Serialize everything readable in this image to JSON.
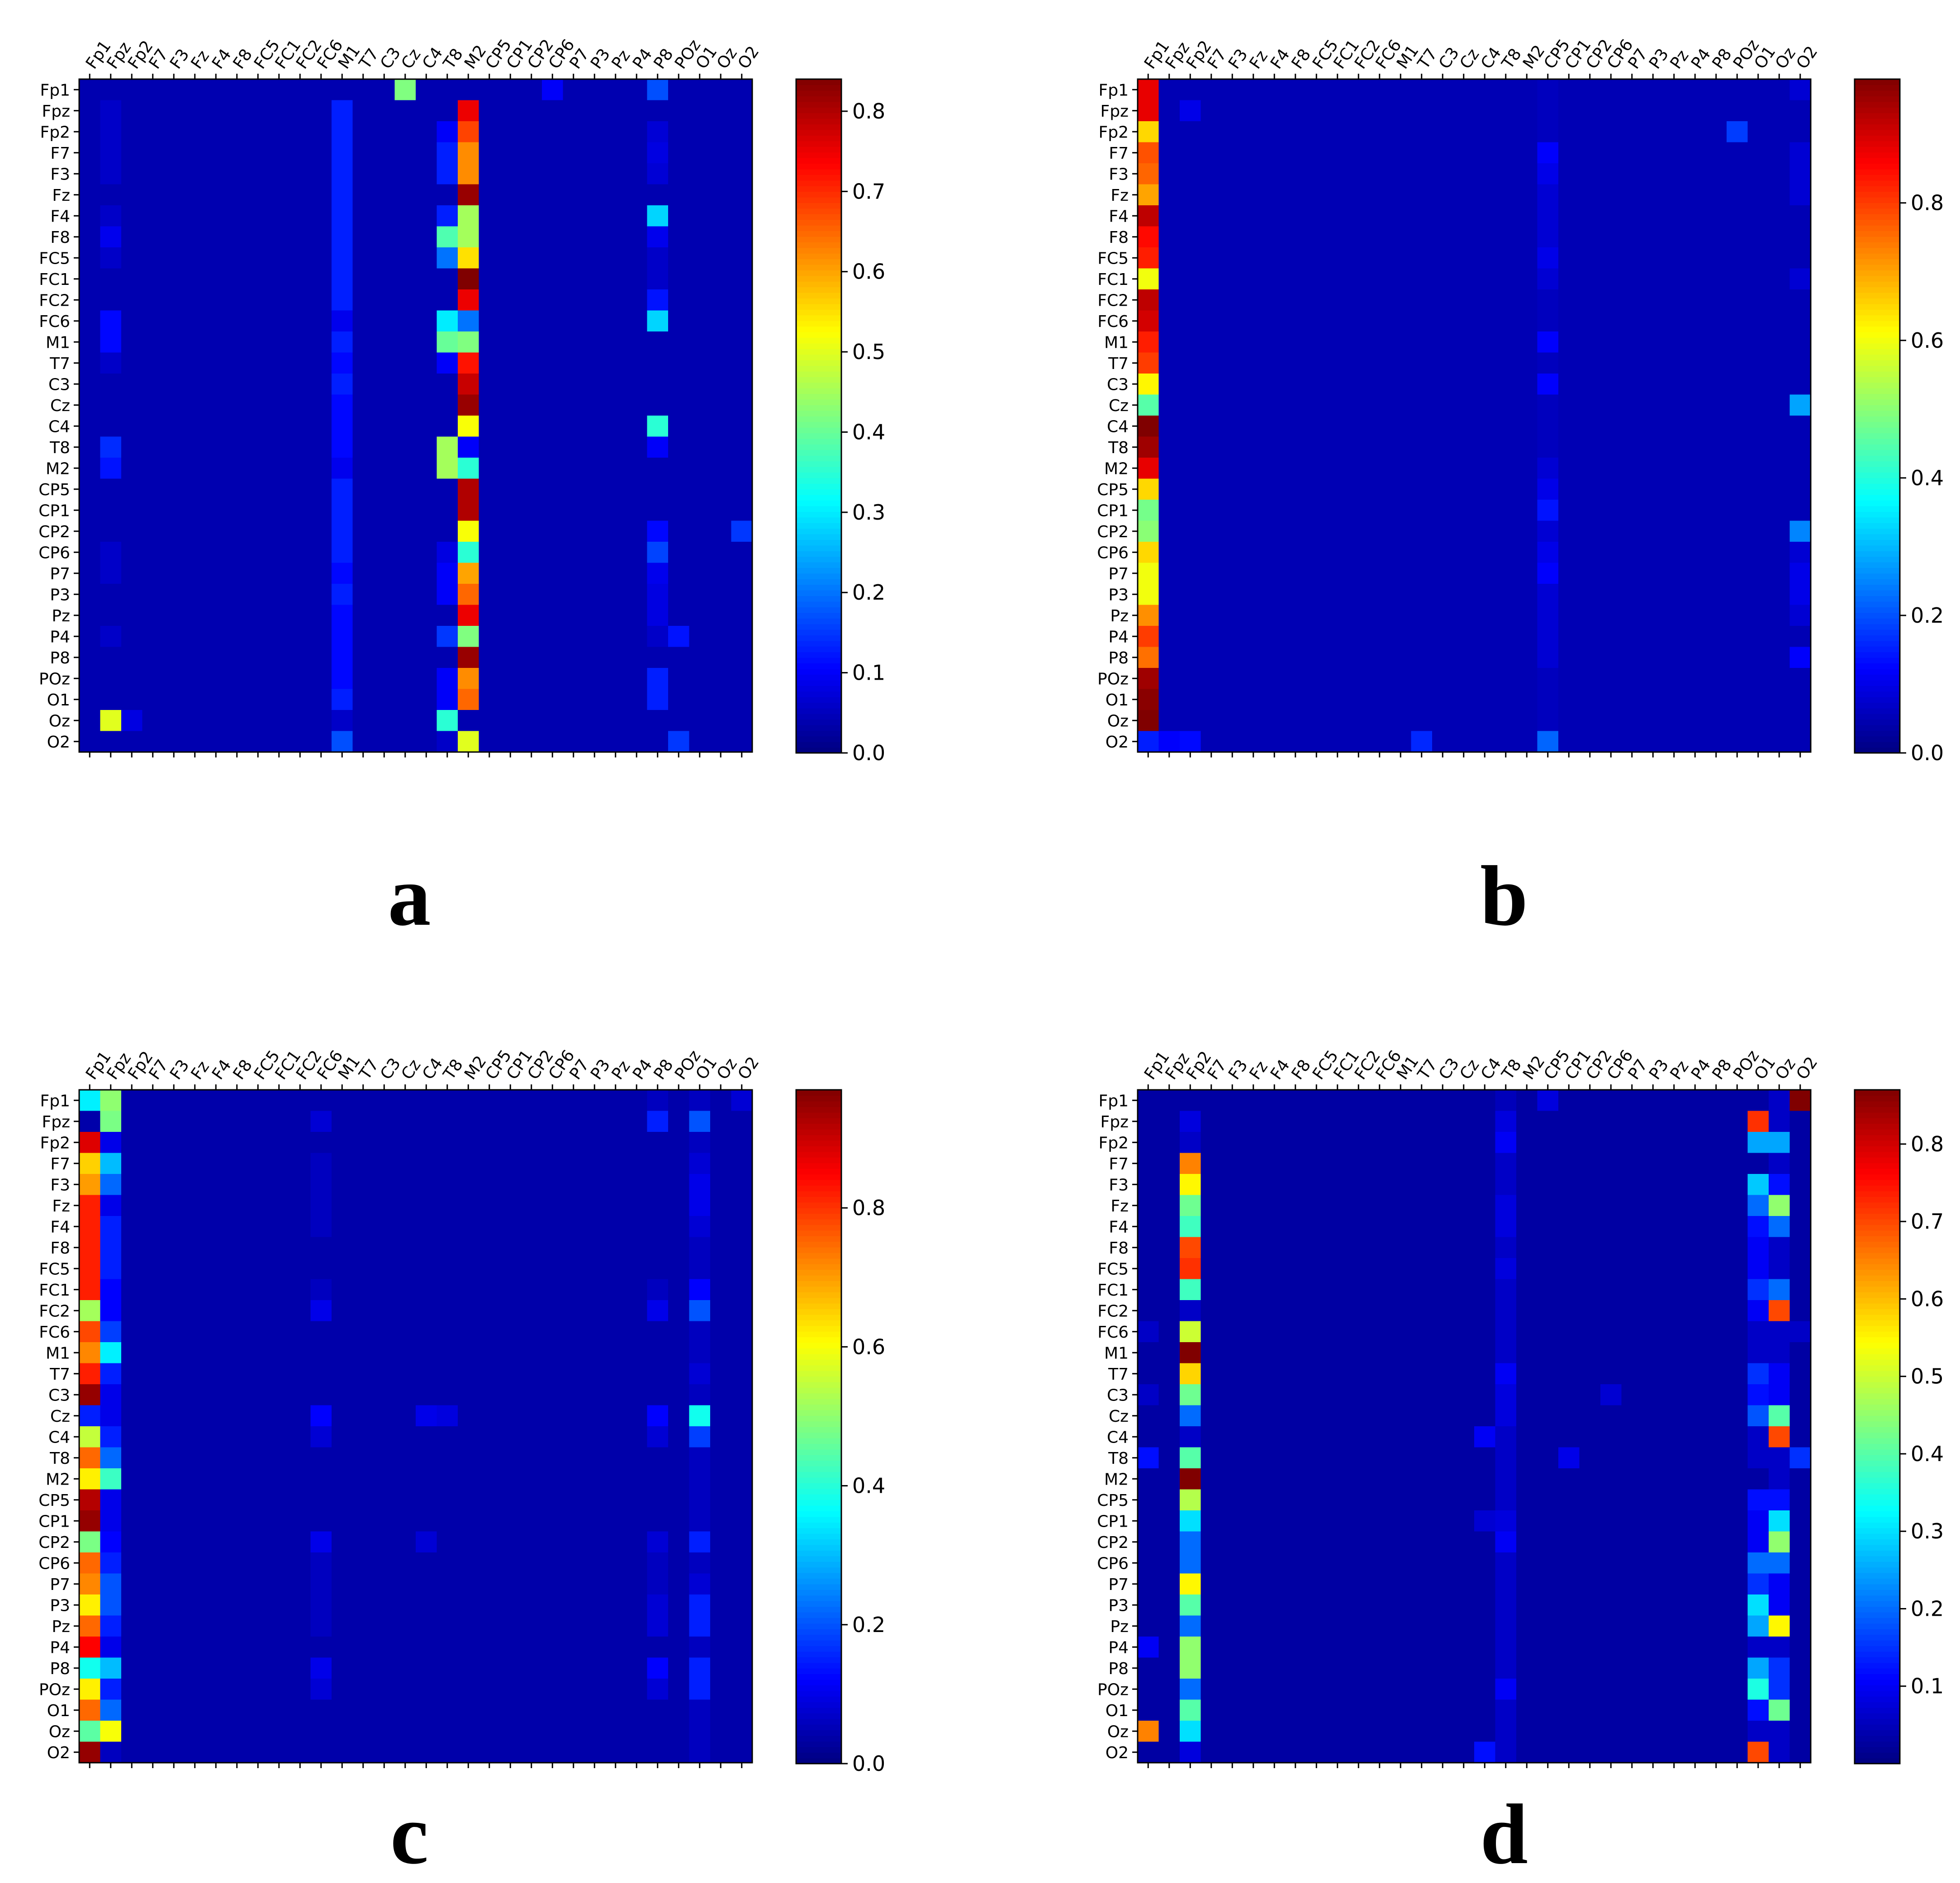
{
  "figure": {
    "panels": [
      "a",
      "b",
      "c",
      "d"
    ]
  },
  "chart_data": [
    {
      "type": "heatmap",
      "panel_label": "a",
      "channels": [
        "Fp1",
        "Fpz",
        "Fp2",
        "F7",
        "F3",
        "Fz",
        "F4",
        "F8",
        "FC5",
        "FC1",
        "FC2",
        "FC6",
        "M1",
        "T7",
        "C3",
        "Cz",
        "C4",
        "T8",
        "M2",
        "CP5",
        "CP1",
        "CP2",
        "CP6",
        "P7",
        "P3",
        "Pz",
        "P4",
        "P8",
        "POz",
        "O1",
        "Oz",
        "O2"
      ],
      "xlabel": "",
      "ylabel": "",
      "colormap": "jet",
      "colorbar": {
        "vmin": 0.0,
        "vmax": 0.84,
        "ticks": [
          0.0,
          0.1,
          0.2,
          0.3,
          0.4,
          0.5,
          0.6,
          0.7,
          0.8
        ],
        "tick_labels": [
          "0.0",
          "0.1",
          "0.2",
          "0.3",
          "0.4",
          "0.5",
          "0.6",
          "0.7",
          "0.8"
        ]
      },
      "background_value": 0.04,
      "column_profiles": [
        {
          "col": "M1",
          "values": [
            0.04,
            0.13,
            0.13,
            0.13,
            0.13,
            0.13,
            0.13,
            0.13,
            0.13,
            0.13,
            0.13,
            0.09,
            0.13,
            0.11,
            0.13,
            0.11,
            0.11,
            0.11,
            0.09,
            0.13,
            0.13,
            0.13,
            0.13,
            0.11,
            0.13,
            0.11,
            0.11,
            0.11,
            0.11,
            0.13,
            0.06,
            0.17
          ]
        },
        {
          "col": "T8",
          "values": [
            0.04,
            0.04,
            0.1,
            0.13,
            0.13,
            0.04,
            0.13,
            0.38,
            0.2,
            0.04,
            0.04,
            0.3,
            0.4,
            0.1,
            0.04,
            0.04,
            0.04,
            0.45,
            0.45,
            0.04,
            0.04,
            0.04,
            0.08,
            0.1,
            0.1,
            0.04,
            0.15,
            0.04,
            0.1,
            0.1,
            0.35,
            0.06
          ]
        },
        {
          "col": "M2",
          "values": [
            0.04,
            0.75,
            0.68,
            0.62,
            0.62,
            0.82,
            0.45,
            0.45,
            0.55,
            0.84,
            0.75,
            0.2,
            0.42,
            0.72,
            0.78,
            0.82,
            0.52,
            0.1,
            0.35,
            0.8,
            0.8,
            0.52,
            0.35,
            0.6,
            0.65,
            0.75,
            0.42,
            0.82,
            0.62,
            0.65,
            0.04,
            0.5
          ]
        },
        {
          "col": "P8",
          "values": [
            0.17,
            0.04,
            0.07,
            0.08,
            0.07,
            0.04,
            0.28,
            0.09,
            0.06,
            0.06,
            0.12,
            0.28,
            0.04,
            0.04,
            0.04,
            0.04,
            0.35,
            0.1,
            0.04,
            0.04,
            0.04,
            0.11,
            0.16,
            0.09,
            0.08,
            0.08,
            0.06,
            0.04,
            0.13,
            0.13,
            0.04,
            0.04
          ]
        },
        {
          "col": "Fpz",
          "values": [
            0.04,
            0.06,
            0.06,
            0.06,
            0.06,
            0.04,
            0.06,
            0.09,
            0.06,
            0.04,
            0.04,
            0.11,
            0.11,
            0.06,
            0.04,
            0.04,
            0.04,
            0.14,
            0.12,
            0.04,
            0.04,
            0.04,
            0.06,
            0.06,
            0.04,
            0.04,
            0.06,
            0.04,
            0.04,
            0.04,
            0.5,
            0.04
          ]
        }
      ],
      "notable_cells": [
        {
          "row": "Fp1",
          "col": "Cz",
          "value": 0.42
        },
        {
          "row": "CP2",
          "col": "O2",
          "value": 0.15
        },
        {
          "row": "O2",
          "col": "POz",
          "value": 0.15
        },
        {
          "row": "P4",
          "col": "POz",
          "value": 0.12
        },
        {
          "row": "Fp1",
          "col": "CP6",
          "value": 0.1
        },
        {
          "row": "Oz",
          "col": "Fp2",
          "value": 0.08
        }
      ]
    },
    {
      "type": "heatmap",
      "panel_label": "b",
      "channels": [
        "Fp1",
        "Fpz",
        "Fp2",
        "F7",
        "F3",
        "Fz",
        "F4",
        "F8",
        "FC5",
        "FC1",
        "FC2",
        "FC6",
        "M1",
        "T7",
        "C3",
        "Cz",
        "C4",
        "T8",
        "M2",
        "CP5",
        "CP1",
        "CP2",
        "CP6",
        "P7",
        "P3",
        "Pz",
        "P4",
        "P8",
        "POz",
        "O1",
        "Oz",
        "O2"
      ],
      "xlabel": "",
      "ylabel": "",
      "colormap": "jet",
      "colorbar": {
        "vmin": 0.0,
        "vmax": 0.98,
        "ticks": [
          0.0,
          0.2,
          0.4,
          0.6,
          0.8
        ],
        "tick_labels": [
          "0.0",
          "0.2",
          "0.4",
          "0.6",
          "0.8"
        ]
      },
      "background_value": 0.05,
      "column_profiles": [
        {
          "col": "Fp1",
          "values": [
            0.88,
            0.88,
            0.65,
            0.78,
            0.76,
            0.7,
            0.92,
            0.85,
            0.83,
            0.6,
            0.92,
            0.9,
            0.83,
            0.8,
            0.62,
            0.45,
            0.98,
            0.95,
            0.88,
            0.65,
            0.48,
            0.5,
            0.65,
            0.6,
            0.6,
            0.72,
            0.8,
            0.75,
            0.95,
            0.97,
            0.98,
            0.15
          ]
        },
        {
          "col": "CP5",
          "values": [
            0.06,
            0.06,
            0.06,
            0.12,
            0.1,
            0.08,
            0.08,
            0.08,
            0.1,
            0.08,
            0.06,
            0.06,
            0.12,
            0.06,
            0.12,
            0.06,
            0.06,
            0.06,
            0.08,
            0.1,
            0.14,
            0.08,
            0.1,
            0.12,
            0.08,
            0.08,
            0.08,
            0.08,
            0.06,
            0.06,
            0.06,
            0.22
          ]
        },
        {
          "col": "O2",
          "values": [
            0.08,
            0.05,
            0.05,
            0.08,
            0.08,
            0.08,
            0.05,
            0.05,
            0.05,
            0.08,
            0.05,
            0.05,
            0.05,
            0.05,
            0.05,
            0.28,
            0.05,
            0.05,
            0.05,
            0.05,
            0.05,
            0.25,
            0.08,
            0.1,
            0.1,
            0.08,
            0.05,
            0.12,
            0.05,
            0.05,
            0.05,
            0.05
          ]
        }
      ],
      "notable_cells": [
        {
          "row": "Fp2",
          "col": "POz",
          "value": 0.18
        },
        {
          "row": "O2",
          "col": "T7",
          "value": 0.16
        },
        {
          "row": "O2",
          "col": "Fpz",
          "value": 0.12
        },
        {
          "row": "O2",
          "col": "Fp2",
          "value": 0.13
        },
        {
          "row": "Fpz",
          "col": "Fp2",
          "value": 0.1
        }
      ]
    },
    {
      "type": "heatmap",
      "panel_label": "c",
      "channels": [
        "Fp1",
        "Fpz",
        "Fp2",
        "F7",
        "F3",
        "Fz",
        "F4",
        "F8",
        "FC5",
        "FC1",
        "FC2",
        "FC6",
        "M1",
        "T7",
        "C3",
        "Cz",
        "C4",
        "T8",
        "M2",
        "CP5",
        "CP1",
        "CP2",
        "CP6",
        "P7",
        "P3",
        "Pz",
        "P4",
        "P8",
        "POz",
        "O1",
        "Oz",
        "O2"
      ],
      "xlabel": "",
      "ylabel": "",
      "colormap": "jet",
      "colorbar": {
        "vmin": 0.0,
        "vmax": 0.97,
        "ticks": [
          0.0,
          0.2,
          0.4,
          0.6,
          0.8
        ],
        "tick_labels": [
          "0.0",
          "0.2",
          "0.4",
          "0.6",
          "0.8"
        ]
      },
      "background_value": 0.04,
      "column_profiles": [
        {
          "col": "Fp1",
          "values": [
            0.35,
            0.04,
            0.88,
            0.65,
            0.7,
            0.82,
            0.82,
            0.82,
            0.82,
            0.82,
            0.52,
            0.78,
            0.72,
            0.82,
            0.95,
            0.15,
            0.55,
            0.75,
            0.62,
            0.92,
            0.95,
            0.48,
            0.75,
            0.72,
            0.62,
            0.75,
            0.85,
            0.38,
            0.62,
            0.75,
            0.45,
            0.95
          ]
        },
        {
          "col": "Fpz",
          "values": [
            0.5,
            0.48,
            0.1,
            0.3,
            0.22,
            0.1,
            0.15,
            0.15,
            0.15,
            0.12,
            0.12,
            0.18,
            0.35,
            0.15,
            0.1,
            0.1,
            0.15,
            0.22,
            0.42,
            0.1,
            0.1,
            0.12,
            0.15,
            0.2,
            0.2,
            0.15,
            0.1,
            0.3,
            0.15,
            0.22,
            0.6,
            0.06
          ]
        },
        {
          "col": "O1",
          "values": [
            0.06,
            0.2,
            0.06,
            0.08,
            0.1,
            0.1,
            0.08,
            0.06,
            0.06,
            0.12,
            0.2,
            0.06,
            0.06,
            0.08,
            0.06,
            0.38,
            0.18,
            0.06,
            0.06,
            0.06,
            0.06,
            0.15,
            0.06,
            0.08,
            0.15,
            0.15,
            0.06,
            0.15,
            0.15,
            0.06,
            0.06,
            0.06
          ]
        },
        {
          "col": "P8",
          "values": [
            0.06,
            0.15,
            0.04,
            0.04,
            0.04,
            0.04,
            0.04,
            0.04,
            0.04,
            0.06,
            0.1,
            0.04,
            0.04,
            0.04,
            0.04,
            0.12,
            0.08,
            0.04,
            0.04,
            0.04,
            0.04,
            0.08,
            0.06,
            0.06,
            0.08,
            0.08,
            0.04,
            0.12,
            0.08,
            0.04,
            0.04,
            0.04
          ]
        },
        {
          "col": "FC6",
          "values": [
            0.04,
            0.08,
            0.04,
            0.06,
            0.06,
            0.06,
            0.06,
            0.04,
            0.04,
            0.06,
            0.1,
            0.04,
            0.04,
            0.04,
            0.04,
            0.12,
            0.08,
            0.04,
            0.04,
            0.04,
            0.04,
            0.1,
            0.06,
            0.06,
            0.06,
            0.06,
            0.04,
            0.1,
            0.08,
            0.04,
            0.04,
            0.04
          ]
        }
      ],
      "notable_cells": [
        {
          "row": "Cz",
          "col": "C4",
          "value": 0.1
        },
        {
          "row": "Cz",
          "col": "T8",
          "value": 0.09
        },
        {
          "row": "Fp1",
          "col": "O2",
          "value": 0.08
        },
        {
          "row": "CP2",
          "col": "C4",
          "value": 0.08
        }
      ]
    },
    {
      "type": "heatmap",
      "panel_label": "d",
      "channels": [
        "Fp1",
        "Fpz",
        "Fp2",
        "F7",
        "F3",
        "Fz",
        "F4",
        "F8",
        "FC5",
        "FC1",
        "FC2",
        "FC6",
        "M1",
        "T7",
        "C3",
        "Cz",
        "C4",
        "T8",
        "M2",
        "CP5",
        "CP1",
        "CP2",
        "CP6",
        "P7",
        "P3",
        "Pz",
        "P4",
        "P8",
        "POz",
        "O1",
        "Oz",
        "O2"
      ],
      "xlabel": "",
      "ylabel": "",
      "colormap": "jet",
      "colorbar": {
        "vmin": 0.0,
        "vmax": 0.87,
        "ticks": [
          0.1,
          0.2,
          0.3,
          0.4,
          0.5,
          0.6,
          0.7,
          0.8
        ],
        "tick_labels": [
          "0.1",
          "0.2",
          "0.3",
          "0.4",
          "0.5",
          "0.6",
          "0.7",
          "0.8"
        ]
      },
      "background_value": 0.03,
      "column_profiles": [
        {
          "col": "Fp2",
          "values": [
            0.03,
            0.08,
            0.06,
            0.65,
            0.55,
            0.42,
            0.38,
            0.7,
            0.72,
            0.38,
            0.06,
            0.5,
            0.87,
            0.58,
            0.42,
            0.2,
            0.06,
            0.4,
            0.87,
            0.48,
            0.3,
            0.2,
            0.2,
            0.55,
            0.4,
            0.2,
            0.45,
            0.45,
            0.2,
            0.4,
            0.3,
            0.08
          ]
        },
        {
          "col": "O1",
          "values": [
            0.03,
            0.72,
            0.25,
            0.03,
            0.28,
            0.2,
            0.12,
            0.1,
            0.1,
            0.15,
            0.1,
            0.06,
            0.06,
            0.15,
            0.12,
            0.18,
            0.06,
            0.06,
            0.03,
            0.12,
            0.1,
            0.1,
            0.2,
            0.15,
            0.3,
            0.25,
            0.06,
            0.25,
            0.35,
            0.12,
            0.06,
            0.7
          ]
        },
        {
          "col": "Oz",
          "values": [
            0.06,
            0.06,
            0.25,
            0.06,
            0.12,
            0.45,
            0.2,
            0.06,
            0.06,
            0.2,
            0.7,
            0.06,
            0.06,
            0.1,
            0.1,
            0.4,
            0.7,
            0.06,
            0.06,
            0.12,
            0.3,
            0.45,
            0.2,
            0.1,
            0.1,
            0.55,
            0.06,
            0.15,
            0.15,
            0.42,
            0.06,
            0.06
          ]
        },
        {
          "col": "O2",
          "values": [
            0.87,
            0.03,
            0.03,
            0.03,
            0.03,
            0.03,
            0.03,
            0.03,
            0.03,
            0.03,
            0.03,
            0.06,
            0.03,
            0.03,
            0.03,
            0.03,
            0.03,
            0.15,
            0.03,
            0.03,
            0.03,
            0.03,
            0.03,
            0.03,
            0.03,
            0.03,
            0.03,
            0.03,
            0.03,
            0.03,
            0.03,
            0.03
          ]
        },
        {
          "col": "Fp1",
          "values": [
            0.03,
            0.03,
            0.03,
            0.03,
            0.03,
            0.03,
            0.03,
            0.03,
            0.03,
            0.03,
            0.03,
            0.06,
            0.03,
            0.03,
            0.06,
            0.03,
            0.03,
            0.12,
            0.03,
            0.03,
            0.03,
            0.03,
            0.03,
            0.03,
            0.03,
            0.03,
            0.1,
            0.03,
            0.03,
            0.03,
            0.65,
            0.03
          ]
        },
        {
          "col": "T8",
          "values": [
            0.05,
            0.08,
            0.1,
            0.06,
            0.06,
            0.08,
            0.08,
            0.06,
            0.08,
            0.06,
            0.06,
            0.06,
            0.06,
            0.1,
            0.08,
            0.08,
            0.06,
            0.06,
            0.06,
            0.06,
            0.08,
            0.1,
            0.06,
            0.06,
            0.06,
            0.06,
            0.06,
            0.06,
            0.1,
            0.06,
            0.06,
            0.06
          ]
        }
      ],
      "notable_cells": [
        {
          "row": "C4",
          "col": "C4",
          "value": 0.1
        },
        {
          "row": "Fp1",
          "col": "CP5",
          "value": 0.08
        },
        {
          "row": "CP1",
          "col": "C4",
          "value": 0.07
        },
        {
          "row": "C3",
          "col": "CP6",
          "value": 0.07
        },
        {
          "row": "O2",
          "col": "C4",
          "value": 0.12
        },
        {
          "row": "T8",
          "col": "CP1",
          "value": 0.09
        }
      ]
    }
  ]
}
